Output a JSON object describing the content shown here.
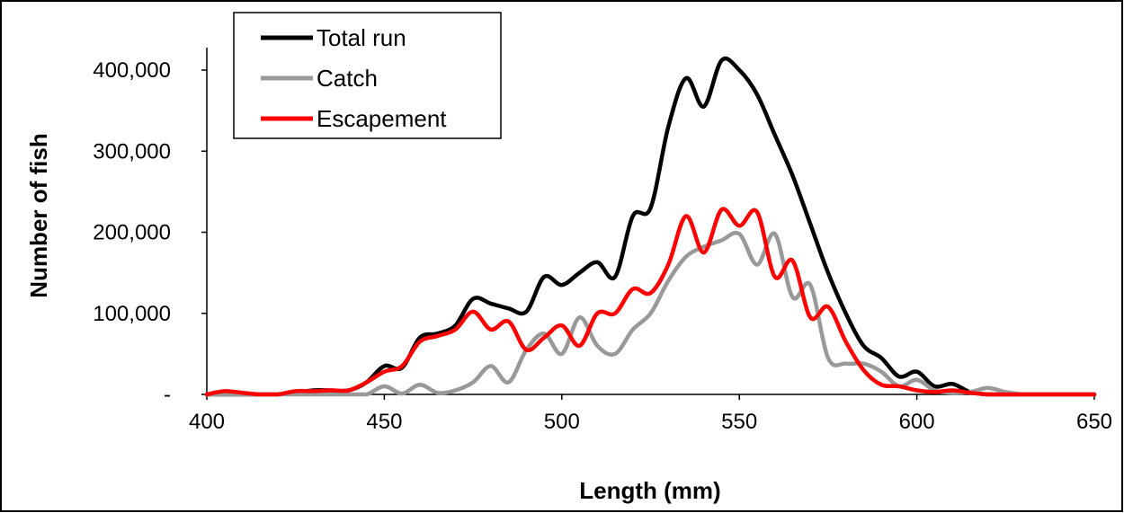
{
  "chart_data": {
    "type": "line",
    "title": "",
    "xlabel": "Length (mm)",
    "ylabel": "Number of fish",
    "xlim": [
      400,
      650
    ],
    "ylim": [
      0,
      400000
    ],
    "x_ticks": [
      400,
      450,
      500,
      550,
      600,
      650
    ],
    "x_tick_labels": [
      "400",
      "450",
      "500",
      "550",
      "600",
      "650"
    ],
    "y_ticks": [
      0,
      100000,
      200000,
      300000,
      400000
    ],
    "y_tick_labels": [
      "-",
      "100,000",
      "200,000",
      "300,000",
      "400,000"
    ],
    "grid": false,
    "legend": "top-left",
    "x": [
      400,
      405,
      410,
      415,
      420,
      425,
      430,
      435,
      440,
      445,
      450,
      455,
      460,
      465,
      470,
      475,
      480,
      485,
      490,
      495,
      500,
      505,
      510,
      515,
      520,
      525,
      530,
      535,
      540,
      545,
      550,
      555,
      560,
      565,
      570,
      575,
      580,
      585,
      590,
      595,
      600,
      605,
      610,
      615,
      620,
      625,
      630,
      635,
      640,
      645,
      650
    ],
    "series": [
      {
        "name": "Total run",
        "color": "#000000",
        "values": [
          0,
          0,
          0,
          0,
          0,
          2000,
          5000,
          5000,
          5000,
          15000,
          35000,
          33000,
          70000,
          75000,
          85000,
          118000,
          112000,
          106000,
          102000,
          145000,
          135000,
          150000,
          163000,
          145000,
          220000,
          230000,
          330000,
          390000,
          355000,
          412000,
          400000,
          370000,
          320000,
          270000,
          210000,
          150000,
          100000,
          60000,
          45000,
          22000,
          28000,
          10000,
          13000,
          3000,
          0,
          0,
          0,
          0,
          0,
          0,
          0
        ]
      },
      {
        "name": "Catch",
        "color": "#999999",
        "values": [
          0,
          0,
          0,
          0,
          0,
          0,
          0,
          0,
          0,
          0,
          10000,
          1000,
          12000,
          2000,
          5000,
          15000,
          35000,
          15000,
          55000,
          75000,
          50000,
          95000,
          60000,
          50000,
          80000,
          100000,
          140000,
          170000,
          182000,
          190000,
          198000,
          160000,
          198000,
          120000,
          135000,
          45000,
          38000,
          38000,
          28000,
          10000,
          18000,
          5000,
          2000,
          3000,
          8000,
          3000,
          0,
          0,
          0,
          0,
          0
        ]
      },
      {
        "name": "Escapement",
        "color": "#ff0000",
        "values": [
          0,
          4000,
          2000,
          0,
          0,
          4000,
          4000,
          5000,
          5000,
          15000,
          28000,
          35000,
          65000,
          72000,
          80000,
          102000,
          80000,
          90000,
          55000,
          70000,
          85000,
          60000,
          100000,
          100000,
          130000,
          125000,
          160000,
          220000,
          175000,
          228000,
          208000,
          225000,
          145000,
          165000,
          95000,
          108000,
          65000,
          30000,
          12000,
          10000,
          5000,
          3000,
          5000,
          2000,
          0,
          0,
          0,
          0,
          0,
          0,
          0
        ]
      }
    ]
  }
}
